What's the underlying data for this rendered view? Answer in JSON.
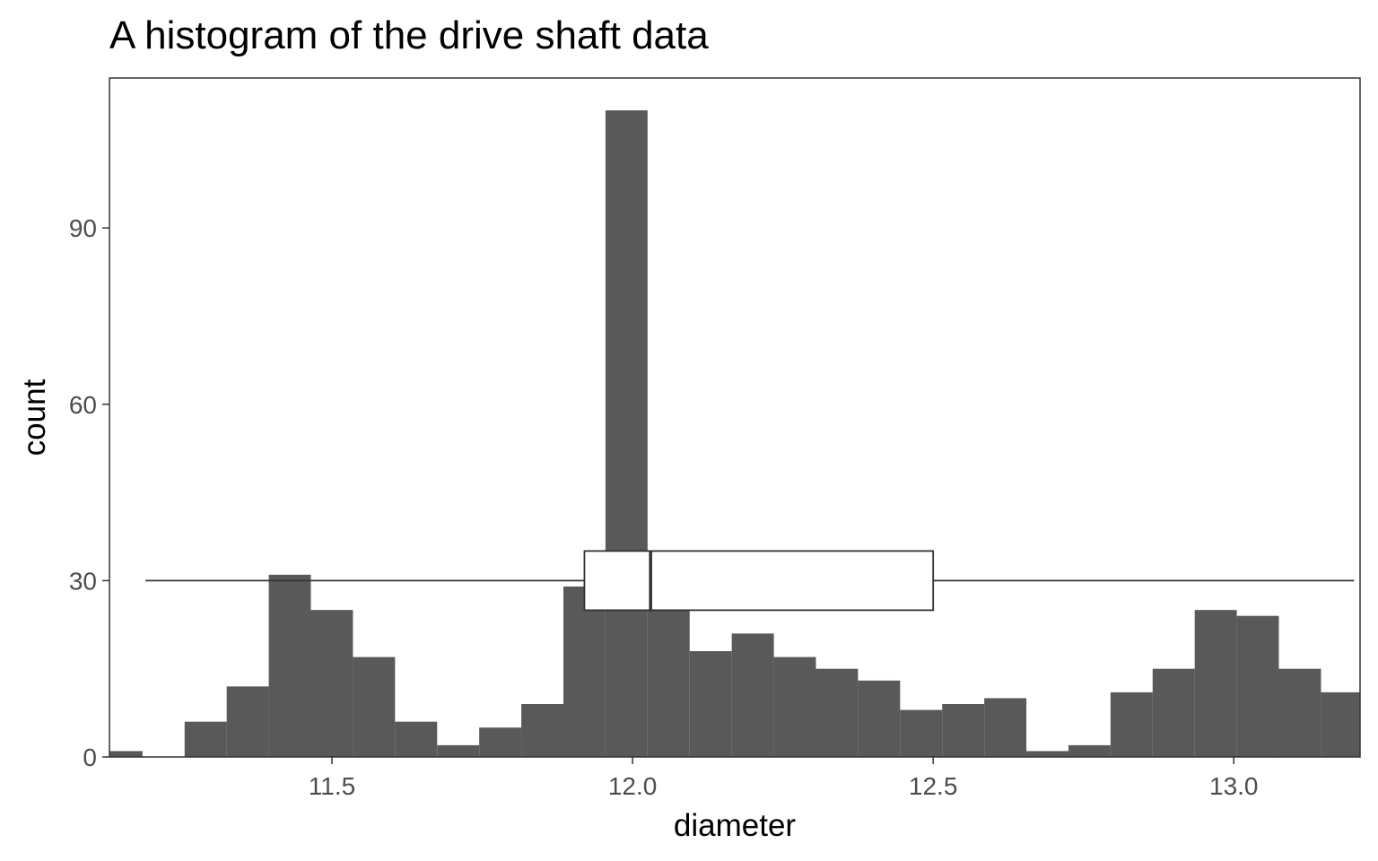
{
  "chart_data": {
    "type": "bar",
    "subtype": "histogram with horizontal boxplot overlay",
    "title": "A histogram of the drive shaft data",
    "xlabel": "diameter",
    "ylabel": "count",
    "xlim": [
      11.13,
      13.21
    ],
    "ylim": [
      0,
      115.5
    ],
    "x_ticks": [
      11.5,
      12.0,
      12.5,
      13.0
    ],
    "x_tick_labels": [
      "11.5",
      "12.0",
      "12.5",
      "13.0"
    ],
    "y_ticks": [
      0,
      30,
      60,
      90
    ],
    "y_tick_labels": [
      "0",
      "30",
      "60",
      "90"
    ],
    "grid": false,
    "bar_color": "#595959",
    "bins": {
      "centers": [
        11.15,
        11.22,
        11.29,
        11.36,
        11.43,
        11.5,
        11.57,
        11.64,
        11.71,
        11.78,
        11.85,
        11.92,
        11.99,
        12.06,
        12.13,
        12.2,
        12.27,
        12.34,
        12.41,
        12.48,
        12.55,
        12.62,
        12.69,
        12.76,
        12.83,
        12.9,
        12.97,
        13.04,
        13.11,
        13.18
      ],
      "width": 0.07,
      "counts": [
        1,
        0,
        6,
        12,
        31,
        25,
        17,
        6,
        2,
        5,
        9,
        29,
        110,
        25,
        18,
        21,
        17,
        15,
        13,
        8,
        9,
        10,
        1,
        2,
        11,
        15,
        25,
        24,
        15,
        11
      ]
    },
    "boxplot": {
      "y_position": 30,
      "whisker_low": 11.19,
      "q1": 11.92,
      "median": 12.03,
      "q3": 12.5,
      "whisker_high": 13.2
    }
  }
}
